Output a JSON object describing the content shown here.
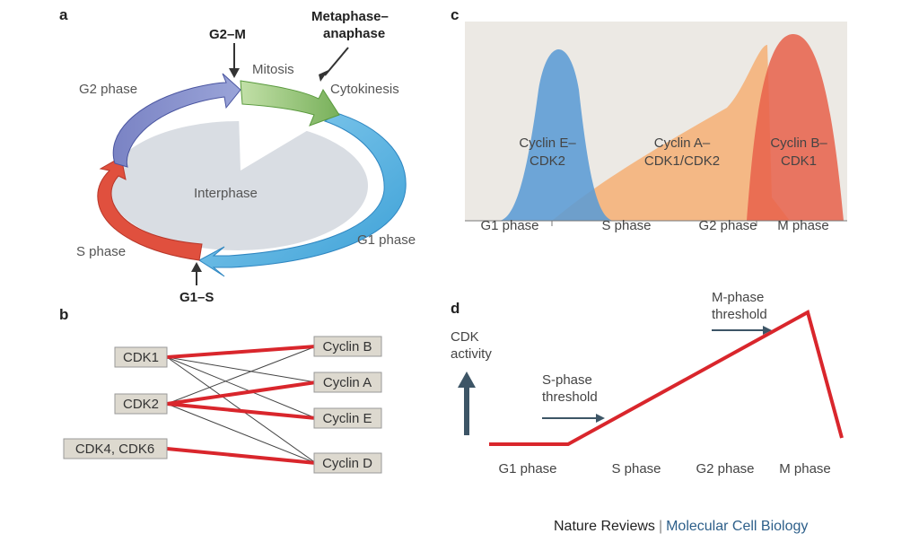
{
  "panel_a": {
    "letter": "a",
    "mitosis": "Mitosis",
    "cytokinesis": "Cytokinesis",
    "interphase": "Interphase",
    "g2_phase": "G2 phase",
    "g1_phase": "G1 phase",
    "s_phase": "S phase",
    "g2m": "G2–M",
    "g1s": "G1–S",
    "metaphase_line1": "Metaphase–",
    "metaphase_line2": "anaphase"
  },
  "panel_b": {
    "letter": "b",
    "cdks": [
      "CDK1",
      "CDK2",
      "CDK4, CDK6"
    ],
    "cyclins": [
      "Cyclin B",
      "Cyclin A",
      "Cyclin E",
      "Cyclin D"
    ]
  },
  "panel_c": {
    "letter": "c",
    "cyclin_e_line1": "Cyclin E–",
    "cyclin_e_line2": "CDK2",
    "cyclin_a_line1": "Cyclin A–",
    "cyclin_a_line2": "CDK1/CDK2",
    "cyclin_b_line1": "Cyclin B–",
    "cyclin_b_line2": "CDK1",
    "phases": [
      "G1 phase",
      "S phase",
      "G2 phase",
      "M phase"
    ],
    "colors": {
      "cyclin_e": "#5b9bd5",
      "cyclin_a": "#f5b27a",
      "cyclin_b": "#e8604a",
      "background": "#ece9e4"
    }
  },
  "panel_d": {
    "letter": "d",
    "y_label_line1": "CDK",
    "y_label_line2": "activity",
    "s_threshold_line1": "S-phase",
    "s_threshold_line2": "threshold",
    "m_threshold_line1": "M-phase",
    "m_threshold_line2": "threshold",
    "phases": [
      "G1 phase",
      "S phase",
      "G2 phase",
      "M phase"
    ],
    "line_color": "#d9262c"
  },
  "credit": {
    "publisher": "Nature Reviews",
    "separator": "|",
    "journal": "Molecular Cell Biology"
  }
}
